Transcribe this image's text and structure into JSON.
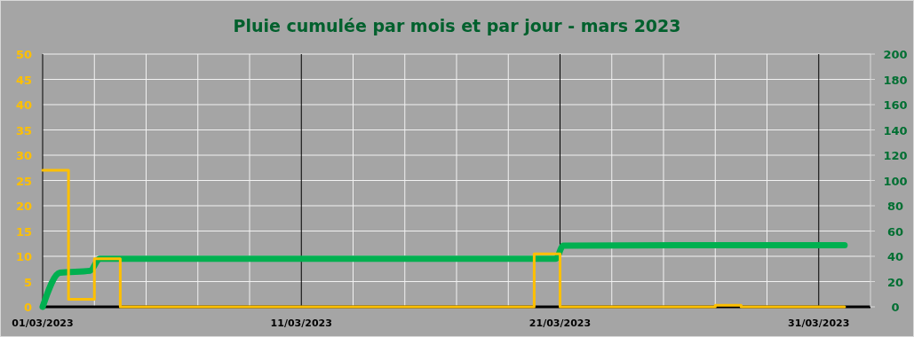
{
  "chart_data": {
    "type": "line",
    "title": "Pluie cumulée par mois et par jour - mars 2023",
    "grid": true,
    "xlim": [
      "2023-03-01",
      "2023-04-02"
    ],
    "xticks": [
      {
        "value": "2023-03-01",
        "label": "01/03/2023"
      },
      {
        "value": "2023-03-03",
        "label": null
      },
      {
        "value": "2023-03-05",
        "label": null
      },
      {
        "value": "2023-03-07",
        "label": null
      },
      {
        "value": "2023-03-09",
        "label": null
      },
      {
        "value": "2023-03-11",
        "label": "11/03/2023"
      },
      {
        "value": "2023-03-13",
        "label": null
      },
      {
        "value": "2023-03-15",
        "label": null
      },
      {
        "value": "2023-03-17",
        "label": null
      },
      {
        "value": "2023-03-19",
        "label": null
      },
      {
        "value": "2023-03-21",
        "label": "21/03/2023"
      },
      {
        "value": "2023-03-23",
        "label": null
      },
      {
        "value": "2023-03-25",
        "label": null
      },
      {
        "value": "2023-03-27",
        "label": null
      },
      {
        "value": "2023-03-29",
        "label": null
      },
      {
        "value": "2023-03-31",
        "label": "31/03/2023"
      }
    ],
    "ylim": [
      0,
      50
    ],
    "yticks": [
      0,
      5,
      10,
      15,
      20,
      25,
      30,
      35,
      40,
      45,
      50
    ],
    "y2lim": [
      0,
      200
    ],
    "y2ticks": [
      0,
      20,
      40,
      60,
      80,
      100,
      120,
      140,
      160,
      180,
      200
    ],
    "series": [
      {
        "type": "step",
        "color": "#ffc000",
        "x": [
          "2023-03-01",
          "2023-03-02",
          "2023-03-03",
          "2023-03-04",
          "2023-03-05",
          "2023-03-06",
          "2023-03-07",
          "2023-03-08",
          "2023-03-09",
          "2023-03-10",
          "2023-03-11",
          "2023-03-12",
          "2023-03-13",
          "2023-03-14",
          "2023-03-15",
          "2023-03-16",
          "2023-03-17",
          "2023-03-18",
          "2023-03-19",
          "2023-03-20",
          "2023-03-21",
          "2023-03-22",
          "2023-03-23",
          "2023-03-24",
          "2023-03-25",
          "2023-03-26",
          "2023-03-27",
          "2023-03-28",
          "2023-03-29",
          "2023-03-30",
          "2023-03-31",
          "2023-04-01"
        ],
        "values": [
          27,
          1.5,
          9.5,
          0,
          0,
          0,
          0,
          0,
          0,
          0,
          0,
          0,
          0,
          0,
          0,
          0,
          0,
          0,
          0,
          10.5,
          0,
          0,
          0,
          0,
          0,
          0,
          0.3,
          0,
          0,
          0,
          0,
          0
        ]
      },
      {
        "axis": "y2",
        "color": "#00b050",
        "x": [
          "2023-03-01",
          "2023-03-01T16:00",
          "2023-03-02T20:00",
          "2023-03-03T05:00",
          "2023-03-20T20:00",
          "2023-03-21T03:00",
          "2023-03-28",
          "2023-04-01"
        ],
        "values": [
          0,
          27,
          28.5,
          38,
          38,
          48.5,
          48.8,
          48.8
        ]
      }
    ]
  }
}
